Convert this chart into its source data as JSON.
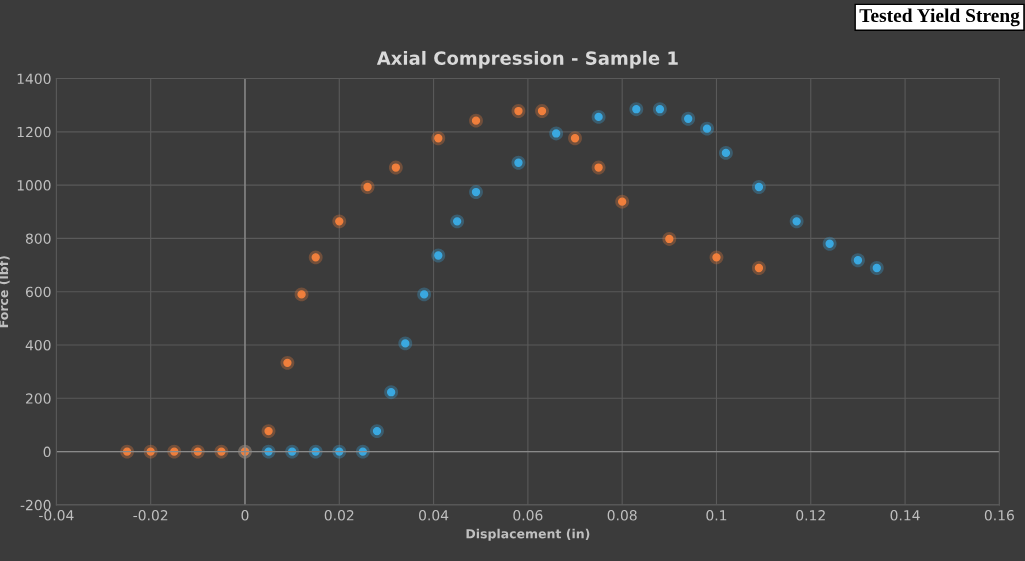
{
  "chart_data": {
    "type": "scatter",
    "title": "Axial Compression - Sample 1",
    "xlabel": "Displacement (in)",
    "ylabel": "Force (lbf)",
    "annotations": [
      "Tested Yield Streng"
    ],
    "xlim": [
      -0.04,
      0.16
    ],
    "xticks": [
      -0.04,
      -0.02,
      0,
      0.02,
      0.04,
      0.06,
      0.08,
      0.1,
      0.12,
      0.14,
      0.16
    ],
    "ylim": [
      -200,
      1400
    ],
    "yticks": [
      -200,
      0,
      200,
      400,
      600,
      800,
      1000,
      1200,
      1400
    ],
    "grid": true,
    "marker": "circle",
    "series": [
      {
        "color": "#3aa8e0",
        "x": [
          0,
          0.005,
          0.01,
          0.015,
          0.02,
          0.025,
          0.028,
          0.031,
          0.034,
          0.038,
          0.041,
          0.045,
          0.049,
          0.058,
          0.066,
          0.075,
          0.083,
          0.088,
          0.094,
          0.098,
          0.102,
          0.109,
          0.117,
          0.124,
          0.13,
          0.134
        ],
        "values": [
          0,
          0,
          0,
          0,
          0,
          0,
          77,
          223,
          406,
          590,
          736,
          864,
          974,
          1084,
          1194,
          1256,
          1285,
          1285,
          1249,
          1212,
          1121,
          993,
          864,
          780,
          718,
          689
        ]
      },
      {
        "color": "#f07f3c",
        "x": [
          -0.025,
          -0.02,
          -0.015,
          -0.01,
          -0.005,
          0,
          0.005,
          0.009,
          0.012,
          0.015,
          0.02,
          0.026,
          0.032,
          0.041,
          0.049,
          0.058,
          0.063,
          0.07,
          0.075,
          0.08,
          0.09,
          0.1,
          0.109
        ],
        "values": [
          0,
          0,
          0,
          0,
          0,
          0,
          77,
          333,
          590,
          729,
          864,
          993,
          1066,
          1176,
          1242,
          1278,
          1278,
          1176,
          1066,
          938,
          798,
          729,
          689
        ]
      }
    ]
  }
}
